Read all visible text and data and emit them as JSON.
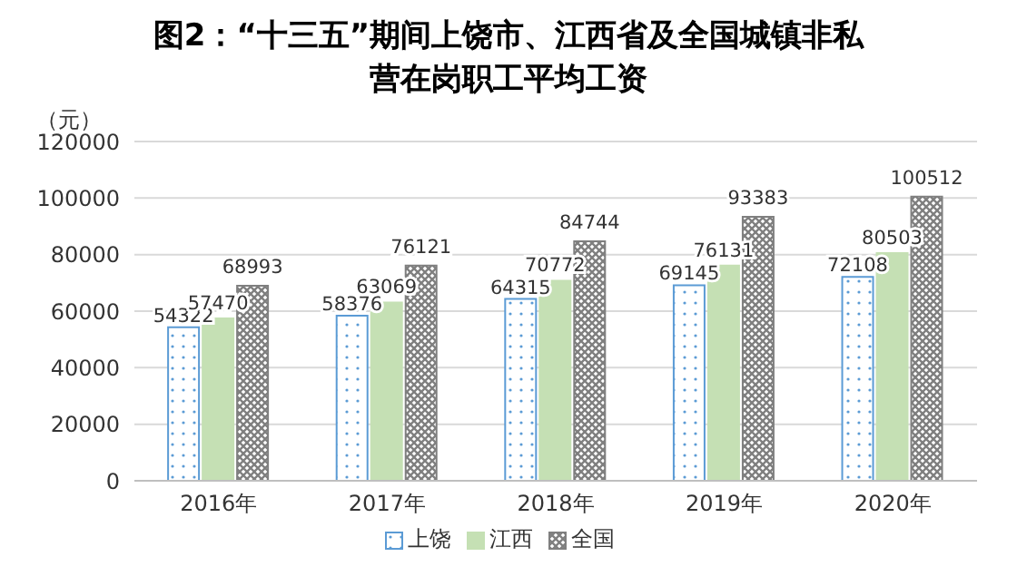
{
  "chart_data": {
    "type": "bar",
    "title": "图2：“十三五”期间上饶市、江西省及全国城镇非私营在岗职工平均工资",
    "ylabel": "（元）",
    "categories": [
      "2016年",
      "2017年",
      "2018年",
      "2019年",
      "2020年"
    ],
    "series": [
      {
        "name": "上饶",
        "color": "#5b9bd5",
        "values": [
          54322,
          58376,
          64315,
          69145,
          72108
        ]
      },
      {
        "name": "江西",
        "color": "#c5e0b4",
        "values": [
          57470,
          63069,
          70772,
          76131,
          80503
        ]
      },
      {
        "name": "全国",
        "color": "#7f7f7f",
        "values": [
          68993,
          76121,
          84744,
          93383,
          100512
        ]
      }
    ],
    "ylim": [
      0,
      120000
    ],
    "yticks": [
      0,
      20000,
      40000,
      60000,
      80000,
      100000,
      120000
    ],
    "grid": "y",
    "legend": "bottom",
    "data_labels": true
  }
}
